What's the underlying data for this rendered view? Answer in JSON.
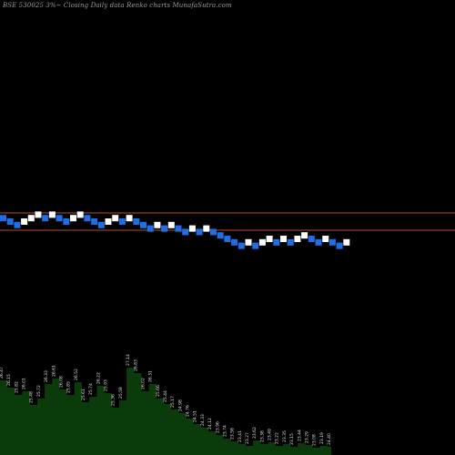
{
  "title": "BSE 530025 3%~  Closing Daily data  Renko  charts MunafaSutra.com",
  "colors": {
    "background": "#000000",
    "up_brick": "#ffffff",
    "down_brick": "#1e6fe6",
    "level_line": "#b0502a",
    "volume_fill": "#0b3a0b",
    "volume_label": "#e0e0e0",
    "title": "#9a9a9a"
  },
  "chart_data": {
    "type": "renko",
    "title": "BSE 530025 3%~  Closing Daily data  Renko  charts MunafaSutra.com",
    "brick_size_pct": 3,
    "grid": false,
    "reference_lines": [
      23.4,
      21.9
    ],
    "bricks": [
      {
        "dir": "down",
        "level": 22.95
      },
      {
        "dir": "down",
        "level": 22.65
      },
      {
        "dir": "down",
        "level": 22.35
      },
      {
        "dir": "up",
        "level": 22.65
      },
      {
        "dir": "up",
        "level": 22.95
      },
      {
        "dir": "up",
        "level": 23.25
      },
      {
        "dir": "down",
        "level": 22.95
      },
      {
        "dir": "up",
        "level": 23.25
      },
      {
        "dir": "down",
        "level": 22.95
      },
      {
        "dir": "down",
        "level": 22.65
      },
      {
        "dir": "up",
        "level": 22.95
      },
      {
        "dir": "up",
        "level": 23.25
      },
      {
        "dir": "down",
        "level": 22.95
      },
      {
        "dir": "down",
        "level": 22.65
      },
      {
        "dir": "down",
        "level": 22.35
      },
      {
        "dir": "up",
        "level": 22.65
      },
      {
        "dir": "up",
        "level": 22.95
      },
      {
        "dir": "down",
        "level": 22.65
      },
      {
        "dir": "up",
        "level": 22.95
      },
      {
        "dir": "down",
        "level": 22.65
      },
      {
        "dir": "down",
        "level": 22.35
      },
      {
        "dir": "down",
        "level": 22.05
      },
      {
        "dir": "up",
        "level": 22.35
      },
      {
        "dir": "down",
        "level": 22.05
      },
      {
        "dir": "up",
        "level": 22.35
      },
      {
        "dir": "down",
        "level": 22.05
      },
      {
        "dir": "down",
        "level": 21.75
      },
      {
        "dir": "up",
        "level": 22.05
      },
      {
        "dir": "down",
        "level": 21.75
      },
      {
        "dir": "up",
        "level": 22.05
      },
      {
        "dir": "down",
        "level": 21.75
      },
      {
        "dir": "down",
        "level": 21.45
      },
      {
        "dir": "down",
        "level": 21.15
      },
      {
        "dir": "down",
        "level": 20.85
      },
      {
        "dir": "down",
        "level": 20.55
      },
      {
        "dir": "up",
        "level": 20.85
      },
      {
        "dir": "down",
        "level": 20.55
      },
      {
        "dir": "up",
        "level": 20.85
      },
      {
        "dir": "up",
        "level": 21.15
      },
      {
        "dir": "down",
        "level": 20.85
      },
      {
        "dir": "up",
        "level": 21.15
      },
      {
        "dir": "down",
        "level": 20.85
      },
      {
        "dir": "up",
        "level": 21.15
      },
      {
        "dir": "up",
        "level": 21.45
      },
      {
        "dir": "down",
        "level": 21.15
      },
      {
        "dir": "down",
        "level": 20.85
      },
      {
        "dir": "up",
        "level": 21.15
      },
      {
        "dir": "down",
        "level": 20.85
      },
      {
        "dir": "down",
        "level": 20.55
      },
      {
        "dir": "up",
        "level": 20.85
      }
    ],
    "volume": [
      {
        "value": 0.82,
        "label": "26.47"
      },
      {
        "value": 0.74,
        "label": "26.15"
      },
      {
        "value": 0.66,
        "label": "25.82"
      },
      {
        "value": 0.7,
        "label": "26.01"
      },
      {
        "value": 0.55,
        "label": "25.48"
      },
      {
        "value": 0.62,
        "label": "25.72"
      },
      {
        "value": 0.78,
        "label": "26.33"
      },
      {
        "value": 0.84,
        "label": "26.61"
      },
      {
        "value": 0.72,
        "label": "26.08"
      },
      {
        "value": 0.66,
        "label": "25.85"
      },
      {
        "value": 0.8,
        "label": "26.52"
      },
      {
        "value": 0.58,
        "label": "25.61"
      },
      {
        "value": 0.64,
        "label": "25.74"
      },
      {
        "value": 0.76,
        "label": "26.22"
      },
      {
        "value": 0.68,
        "label": "25.93"
      },
      {
        "value": 0.52,
        "label": "25.36"
      },
      {
        "value": 0.6,
        "label": "25.58"
      },
      {
        "value": 0.96,
        "label": "27.14"
      },
      {
        "value": 0.9,
        "label": "26.83"
      },
      {
        "value": 0.7,
        "label": "26.02"
      },
      {
        "value": 0.78,
        "label": "26.31"
      },
      {
        "value": 0.62,
        "label": "25.66"
      },
      {
        "value": 0.56,
        "label": "25.44"
      },
      {
        "value": 0.5,
        "label": "25.17"
      },
      {
        "value": 0.46,
        "label": "24.98"
      },
      {
        "value": 0.4,
        "label": "24.76"
      },
      {
        "value": 0.34,
        "label": "24.51"
      },
      {
        "value": 0.3,
        "label": "24.33"
      },
      {
        "value": 0.26,
        "label": "24.12"
      },
      {
        "value": 0.22,
        "label": "23.96"
      },
      {
        "value": 0.18,
        "label": "23.74"
      },
      {
        "value": 0.15,
        "label": "23.58"
      },
      {
        "value": 0.12,
        "label": "23.41"
      },
      {
        "value": 0.1,
        "label": "23.27"
      },
      {
        "value": 0.16,
        "label": "23.62"
      },
      {
        "value": 0.12,
        "label": "23.38"
      },
      {
        "value": 0.14,
        "label": "23.49"
      },
      {
        "value": 0.1,
        "label": "23.22"
      },
      {
        "value": 0.12,
        "label": "23.35"
      },
      {
        "value": 0.09,
        "label": "23.15"
      },
      {
        "value": 0.13,
        "label": "23.44"
      },
      {
        "value": 0.11,
        "label": "23.29"
      },
      {
        "value": 0.08,
        "label": "23.08"
      },
      {
        "value": 0.1,
        "label": "23.19"
      },
      {
        "value": 0.09,
        "label": "24.40"
      }
    ]
  }
}
